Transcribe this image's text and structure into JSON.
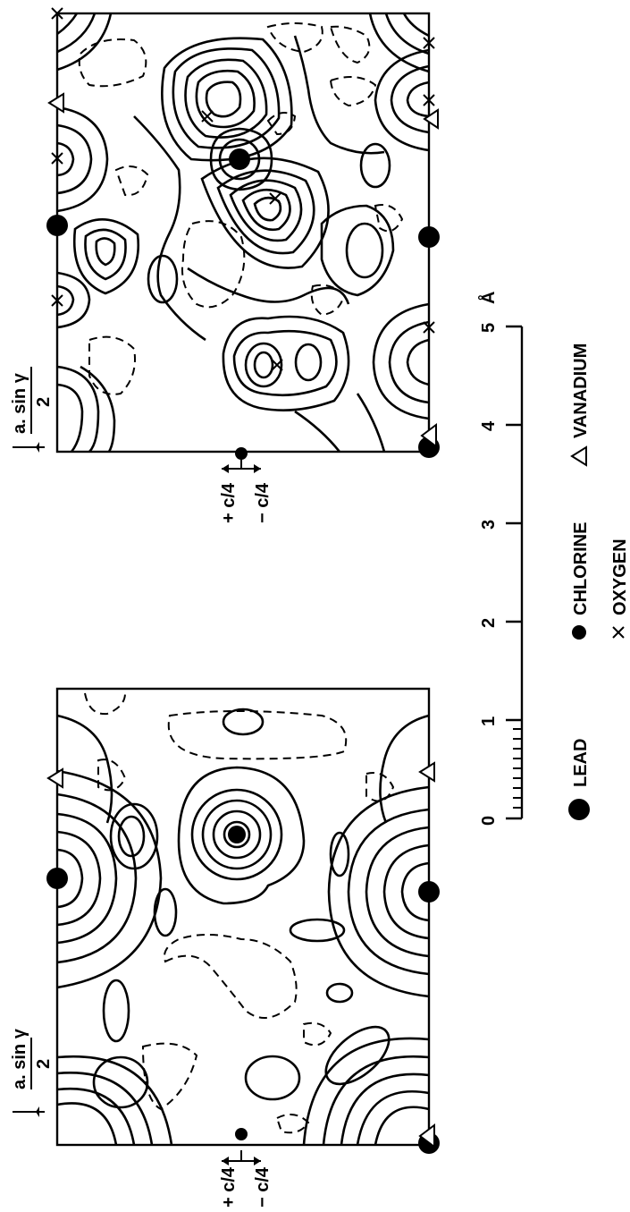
{
  "maps": [
    {
      "axis_label_top": "a. sin γ",
      "axis_label_bottom": "2",
      "c_plus": "+ c/4",
      "c_minus": "− c/4"
    },
    {
      "axis_label_top": "a. sin γ",
      "axis_label_bottom": "2",
      "c_plus": "+ c/4",
      "c_minus": "− c/4"
    }
  ],
  "scale_bar": {
    "ticks": [
      "0",
      "1",
      "2",
      "3",
      "4",
      "5"
    ],
    "unit": "Å"
  },
  "legend": [
    {
      "symbol": "filled-large-circle",
      "label": "LEAD"
    },
    {
      "symbol": "filled-small-circle",
      "label": "CHLORINE"
    },
    {
      "symbol": "cross",
      "label": "OXYGEN"
    },
    {
      "symbol": "triangle",
      "label": "VANADIUM"
    }
  ]
}
